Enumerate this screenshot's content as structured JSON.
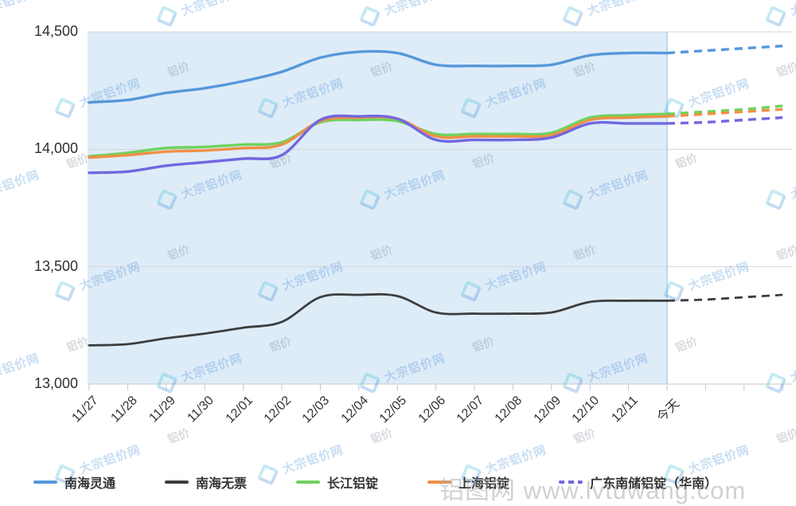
{
  "watermark": {
    "brand": "大宗铝价网",
    "tag": "铝价",
    "bottom_text": "铝图网 www.lvtuwang.com"
  },
  "y_axis": {
    "labels": [
      "14,500",
      "14,000",
      "13,500",
      "13,000"
    ],
    "values": [
      14500,
      14000,
      13500,
      13000
    ]
  },
  "x_axis": {
    "labels": [
      "11/27",
      "11/28",
      "11/29",
      "11/30",
      "12/01",
      "12/02",
      "12/03",
      "12/04",
      "12/05",
      "12/06",
      "12/07",
      "12/08",
      "12/09",
      "12/10",
      "12/11",
      "今天"
    ],
    "unlabeled_forecast_ticks": 3
  },
  "legend": {
    "items": [
      {
        "label": "南海灵通",
        "color": "#5598dc",
        "dashed": false
      },
      {
        "label": "南海无票",
        "color": "#3d3d3d",
        "dashed": false
      },
      {
        "label": "长江铝锭",
        "color": "#6fd25d",
        "dashed": false
      },
      {
        "label": "上海铝锭",
        "color": "#ef9045",
        "dashed": false
      },
      {
        "label": "广东南储铝锭（华南）",
        "color": "#7267e0",
        "dashed": true
      }
    ]
  },
  "chart_data": {
    "type": "line",
    "title": "",
    "categories": [
      "11/27",
      "11/28",
      "11/29",
      "11/30",
      "12/01",
      "12/02",
      "12/03",
      "12/04",
      "12/05",
      "12/06",
      "12/07",
      "12/08",
      "12/09",
      "12/10",
      "12/11",
      "今天"
    ],
    "forecast_start_index": 15,
    "extra_forecast_points": 3,
    "ylim": [
      13000,
      14500
    ],
    "grid": true,
    "legend_position": "bottom",
    "shaded_history_region": true,
    "series": [
      {
        "name": "南海灵通",
        "color": "#5598dc",
        "values": [
          14200,
          14210,
          14240,
          14260,
          14290,
          14330,
          14390,
          14415,
          14410,
          14360,
          14355,
          14355,
          14360,
          14400,
          14410,
          14410,
          14420,
          14430,
          14440
        ]
      },
      {
        "name": "南海无票",
        "color": "#3d3d3d",
        "values": [
          13165,
          13170,
          13195,
          13215,
          13240,
          13265,
          13370,
          13380,
          13375,
          13305,
          13300,
          13300,
          13305,
          13350,
          13355,
          13355,
          13360,
          13370,
          13380
        ]
      },
      {
        "name": "长江铝锭",
        "color": "#6fd25d",
        "values": [
          13970,
          13985,
          14005,
          14010,
          14020,
          14030,
          14115,
          14125,
          14120,
          14065,
          14065,
          14065,
          14070,
          14135,
          14145,
          14150,
          14160,
          14170,
          14185
        ]
      },
      {
        "name": "上海铝锭",
        "color": "#ef9045",
        "values": [
          13965,
          13975,
          13990,
          13995,
          14005,
          14020,
          14120,
          14135,
          14130,
          14055,
          14055,
          14055,
          14060,
          14125,
          14135,
          14140,
          14150,
          14160,
          14170
        ]
      },
      {
        "name": "广东南储铝锭（华南）",
        "color": "#7267e0",
        "values": [
          13900,
          13905,
          13930,
          13945,
          13960,
          13975,
          14125,
          14140,
          14130,
          14040,
          14040,
          14040,
          14050,
          14110,
          14110,
          14110,
          14115,
          14125,
          14135
        ]
      }
    ]
  }
}
